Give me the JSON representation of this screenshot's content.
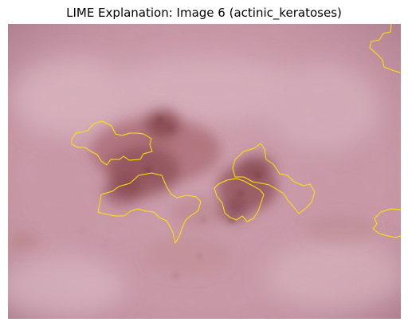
{
  "figure": {
    "title": "LIME Explanation: Image 6 (actinic_keratoses)"
  },
  "image": {
    "subject": "dermoscopic skin lesion",
    "skin_color": "#c899a8",
    "skin_highlight_color": "#ddb9c4",
    "lesion_color": "#8a4550",
    "lesion_dark_color": "#6d2f35",
    "boundary_color": "#ffe600"
  }
}
